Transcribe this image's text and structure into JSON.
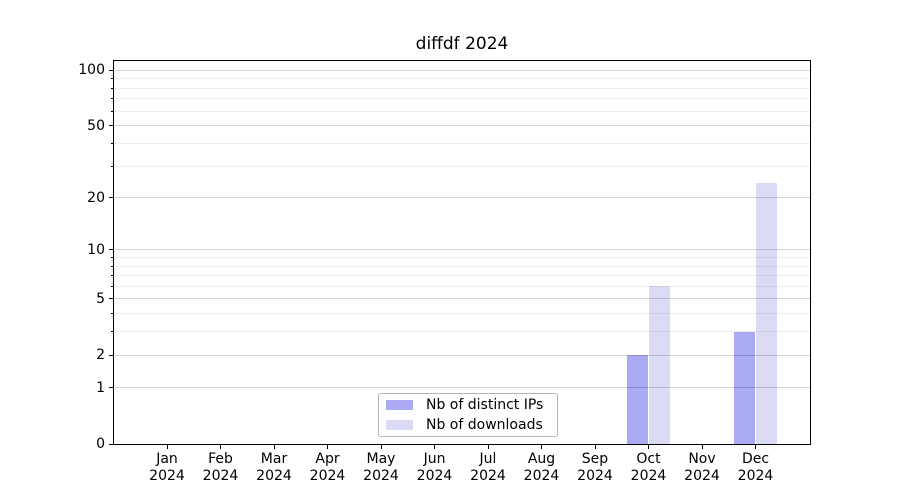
{
  "chart_data": {
    "type": "bar",
    "title": "diffdf 2024",
    "x_tick_months": [
      "Jan",
      "Feb",
      "Mar",
      "Apr",
      "May",
      "Jun",
      "Jul",
      "Aug",
      "Sep",
      "Oct",
      "Nov",
      "Dec"
    ],
    "x_tick_year": "2024",
    "series": [
      {
        "name": "Nb of distinct IPs",
        "color": "#a9a9f4",
        "values": [
          0,
          0,
          0,
          0,
          0,
          0,
          0,
          0,
          0,
          2,
          0,
          3
        ]
      },
      {
        "name": "Nb of downloads",
        "color": "#dbdbf6",
        "values": [
          0,
          0,
          0,
          0,
          0,
          0,
          0,
          0,
          0,
          6,
          0,
          24
        ]
      }
    ],
    "y_ticks": [
      0,
      1,
      2,
      5,
      10,
      20,
      50,
      100
    ],
    "y_minor_ticks": [
      3,
      4,
      6,
      7,
      8,
      9,
      30,
      40,
      60,
      70,
      80,
      90
    ],
    "y_scale": "log10(1+x)",
    "ylim": [
      0,
      115
    ],
    "grid": true,
    "gridlines_over_bars": true,
    "legend_position": "bottom-center-inside",
    "axis_color": "#000000"
  }
}
